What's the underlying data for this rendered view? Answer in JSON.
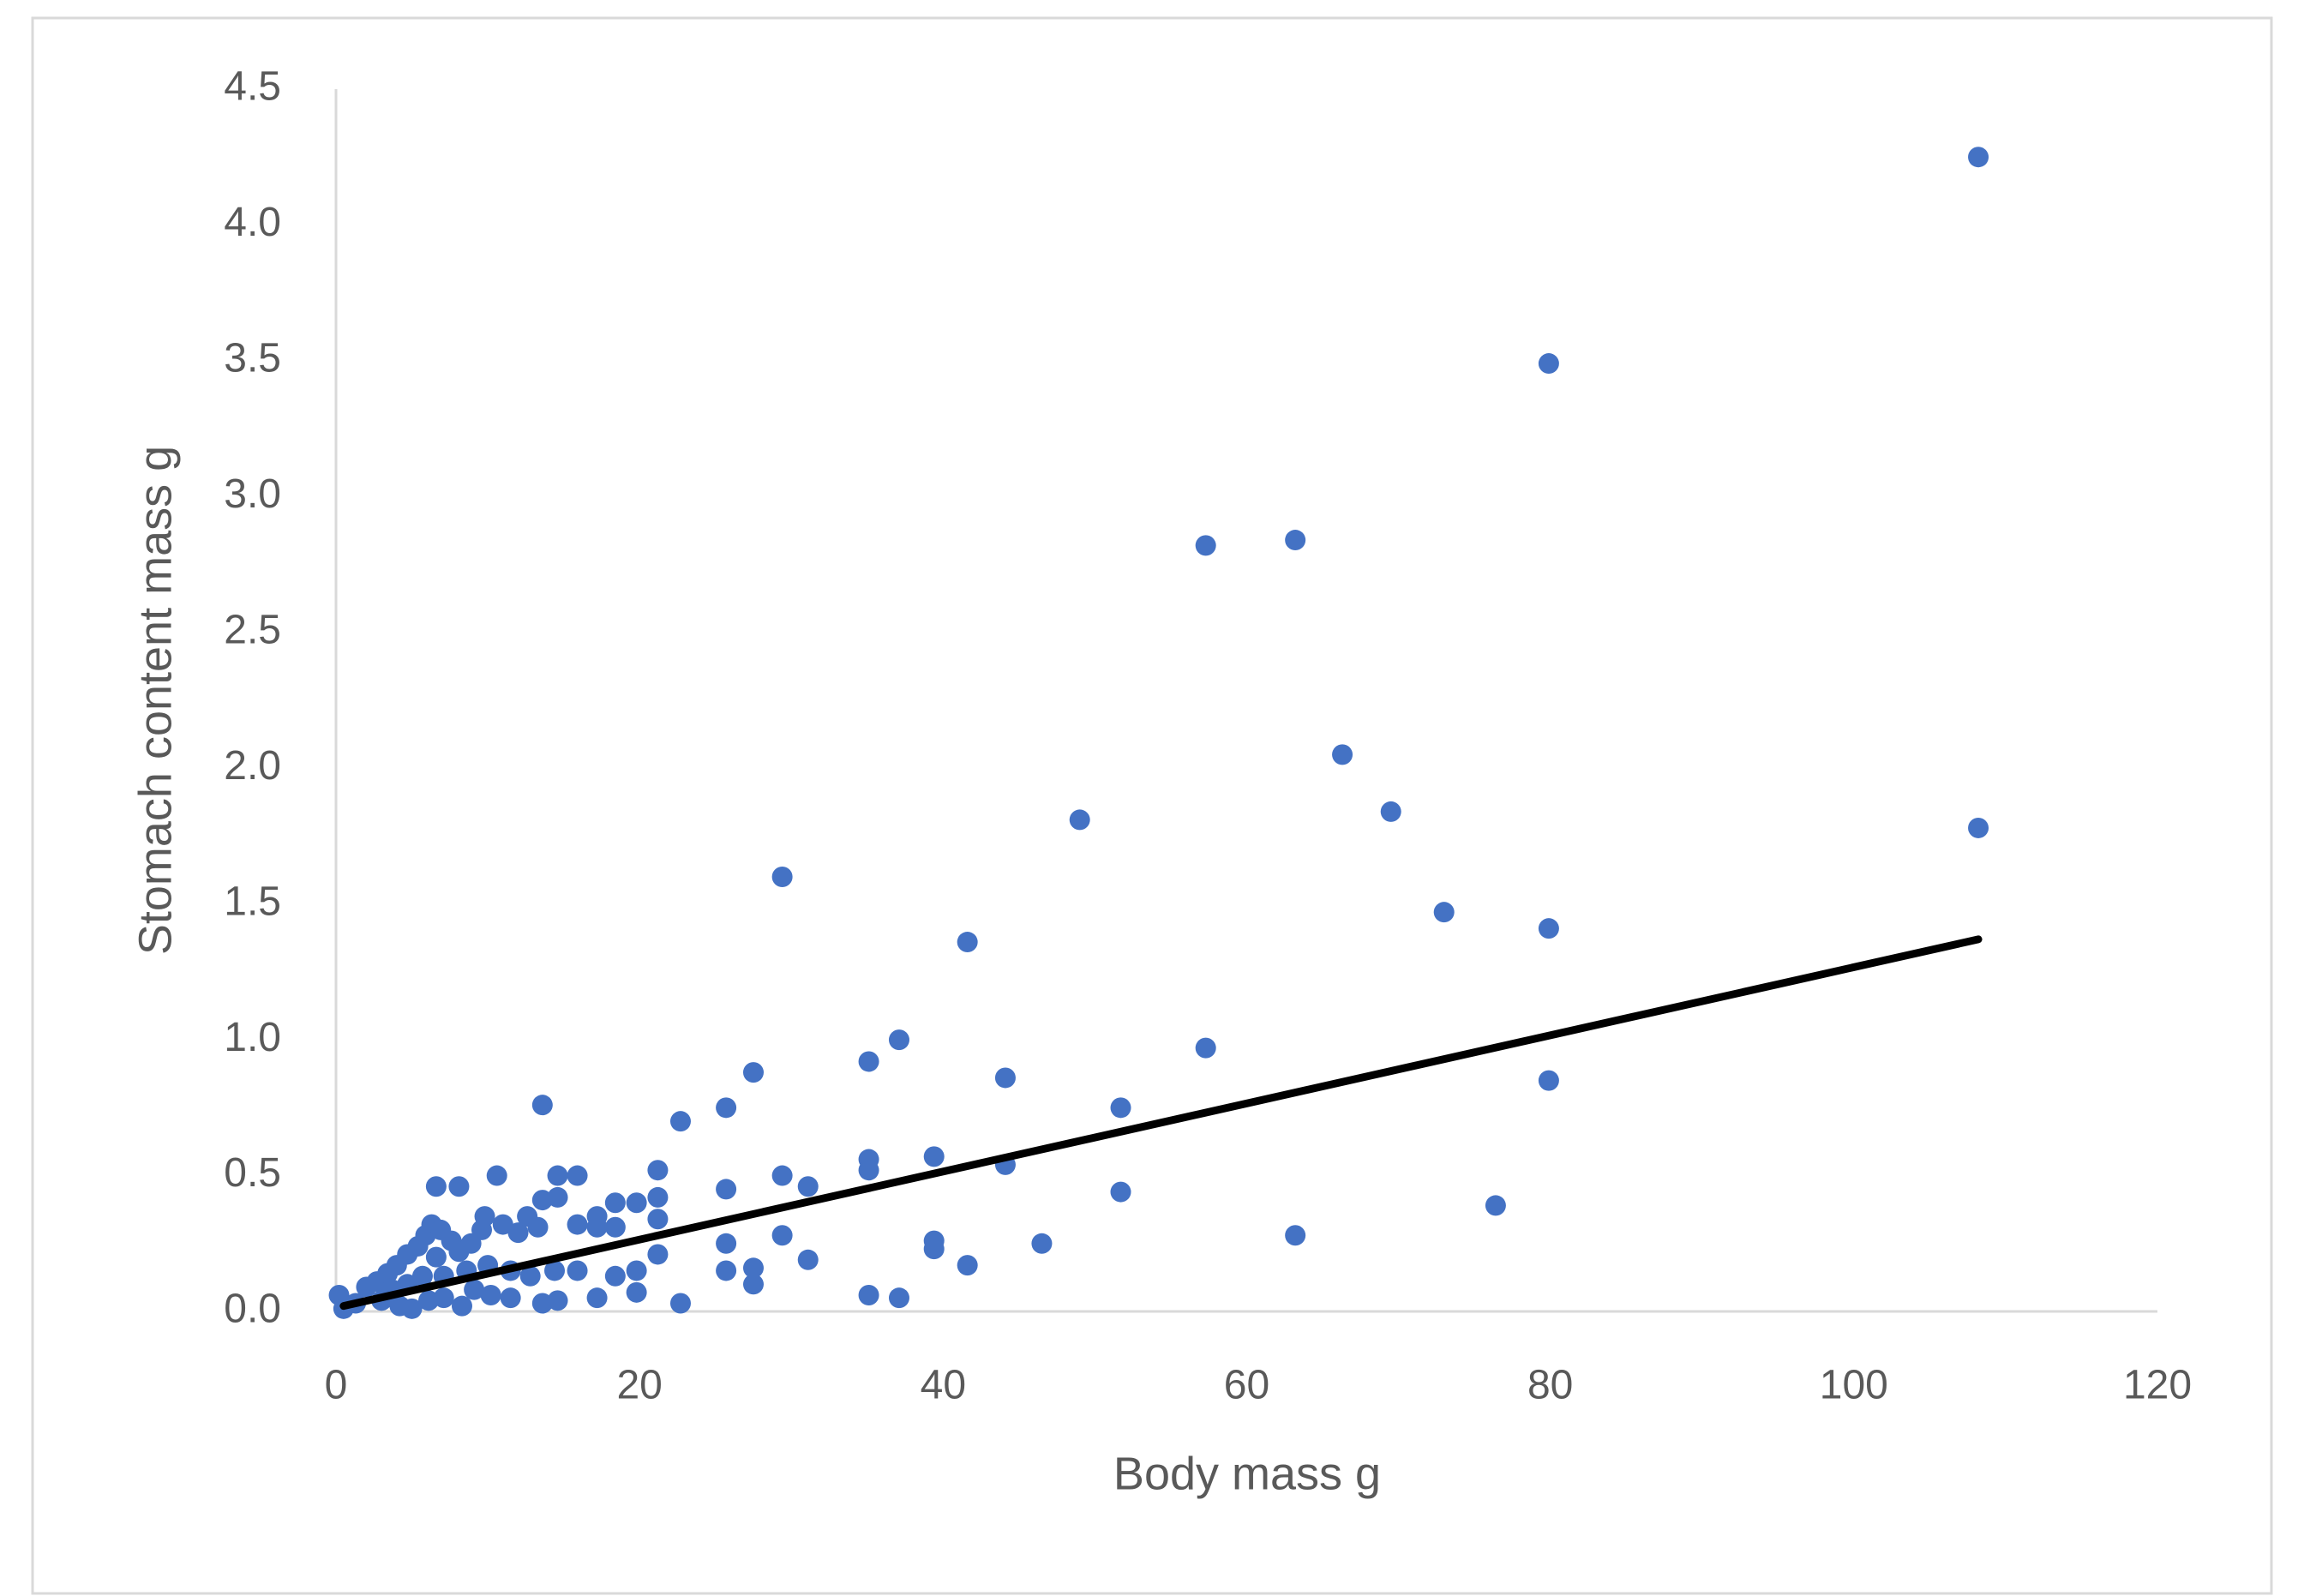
{
  "chart_data": {
    "type": "scatter",
    "xlabel": "Body mass g",
    "ylabel": "Stomach content mass g",
    "xlim": [
      0,
      120
    ],
    "xticks": [
      0,
      20,
      40,
      60,
      80,
      100,
      120
    ],
    "ylim": [
      0,
      4.5
    ],
    "yticks": [
      {
        "value": 0,
        "label": "0.0"
      },
      0.5,
      {
        "value": 1,
        "label": "1.0"
      },
      1.5,
      {
        "value": 2,
        "label": "2.0"
      },
      2.5,
      {
        "value": 3,
        "label": "3.0"
      },
      3.5,
      {
        "value": 4,
        "label": "4.0"
      },
      4.5
    ],
    "grid": false,
    "series": [
      {
        "color": "#4472c4",
        "x": [
          108.2,
          79.9,
          57.3,
          63.2,
          66.3,
          69.5,
          49.0,
          108.2,
          29.4,
          73.0,
          79.9,
          41.6,
          37.1,
          57.3,
          35.1,
          27.5,
          44.1,
          79.9,
          13.6,
          25.7,
          51.7,
          22.7,
          10.6,
          14.6,
          15.9,
          21.2,
          29.4,
          35.1,
          39.4,
          44.1,
          31.1,
          25.7,
          51.7,
          76.4,
          6.6,
          8.1,
          13.6,
          14.6,
          18.4,
          19.8,
          21.2,
          35.1,
          63.2,
          29.4,
          39.4,
          39.4,
          46.5,
          25.7,
          31.1,
          41.6,
          27.5,
          25.7,
          27.5,
          19.8,
          21.2,
          21.2,
          35.1,
          37.1,
          22.7,
          19.8,
          17.2,
          14.6,
          13.6,
          0.2,
          0.5,
          1.3,
          2.0,
          2.7,
          3.4,
          4.0,
          4.7,
          5.4,
          5.9,
          6.3,
          6.9,
          7.6,
          8.1,
          8.9,
          9.6,
          9.8,
          11.0,
          12.0,
          12.6,
          13.3,
          10.0,
          11.5,
          12.8,
          14.4,
          15.9,
          15.9,
          17.2,
          17.2,
          18.4,
          18.4,
          3.0,
          4.2,
          5.0,
          6.1,
          7.1,
          8.3,
          9.1,
          10.2,
          11.5,
          3.7,
          5.7,
          7.1,
          8.6,
          4.7,
          6.6
        ],
        "values": [
          4.25,
          3.49,
          2.82,
          2.84,
          2.05,
          1.84,
          1.81,
          1.78,
          1.6,
          1.47,
          1.41,
          1.36,
          1.0,
          0.97,
          0.92,
          0.88,
          0.86,
          0.85,
          0.76,
          0.75,
          0.75,
          0.7,
          0.5,
          0.5,
          0.5,
          0.52,
          0.5,
          0.56,
          0.57,
          0.54,
          0.46,
          0.45,
          0.44,
          0.39,
          0.46,
          0.46,
          0.41,
          0.42,
          0.4,
          0.4,
          0.42,
          0.52,
          0.28,
          0.28,
          0.26,
          0.23,
          0.25,
          0.25,
          0.19,
          0.17,
          0.16,
          0.15,
          0.1,
          0.15,
          0.21,
          0.34,
          0.06,
          0.05,
          0.03,
          0.07,
          0.05,
          0.04,
          0.03,
          0.06,
          0.01,
          0.03,
          0.09,
          0.11,
          0.14,
          0.17,
          0.21,
          0.24,
          0.28,
          0.32,
          0.3,
          0.26,
          0.22,
          0.25,
          0.3,
          0.35,
          0.32,
          0.29,
          0.35,
          0.31,
          0.17,
          0.15,
          0.13,
          0.15,
          0.15,
          0.32,
          0.35,
          0.31,
          0.31,
          0.13,
          0.04,
          0.02,
          0.01,
          0.04,
          0.05,
          0.02,
          0.08,
          0.06,
          0.05,
          0.08,
          0.13,
          0.13,
          0.15,
          0.1,
          0.2
        ]
      }
    ],
    "trendline": {
      "color": "#000000",
      "x": [
        0.5,
        108.2
      ],
      "values": [
        0.02,
        1.37
      ]
    }
  }
}
